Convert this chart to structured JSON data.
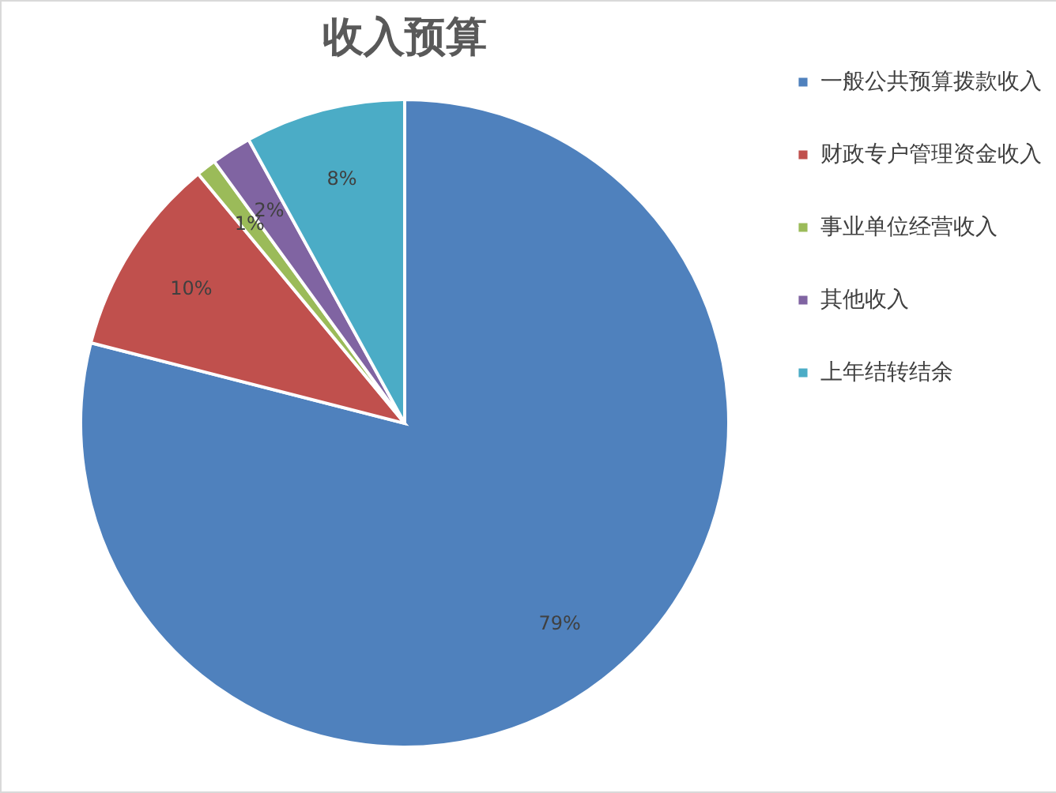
{
  "chart_data": {
    "type": "pie",
    "title": "收入预算",
    "categories": [
      "一般公共预算拨款收入",
      "财政专户管理资金收入",
      "事业单位经营收入",
      "其他收入",
      "上年结转结余"
    ],
    "values": [
      79,
      10,
      1,
      2,
      8
    ],
    "colors": [
      "#4f81bd",
      "#c0504d",
      "#9bbb59",
      "#8064a2",
      "#4bacc6"
    ],
    "value_labels": [
      "79%",
      "10%",
      "1%",
      "2%",
      "8%"
    ],
    "legend": "right"
  }
}
